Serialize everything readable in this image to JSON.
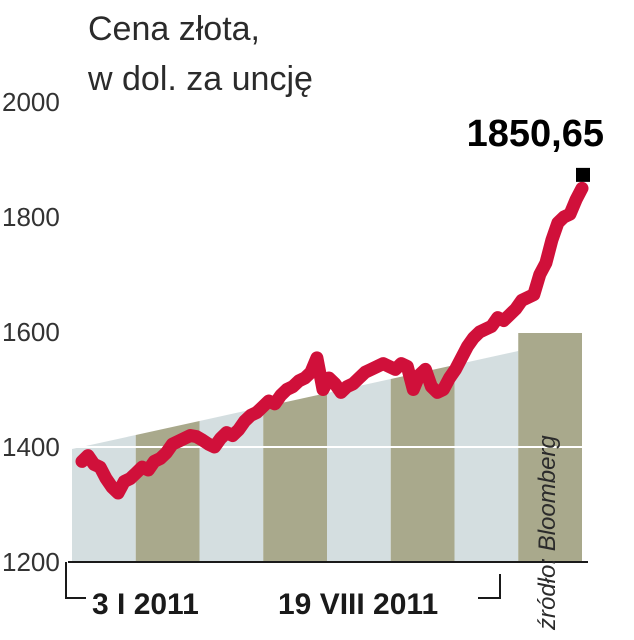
{
  "chart_data": {
    "type": "line",
    "title": "Cena złota,",
    "subtitle": "w dol. za uncję",
    "y_ticks": [
      "2000",
      "1800",
      "1600",
      "1400",
      "1200"
    ],
    "ylim": [
      1200,
      2000
    ],
    "x_tick_labels": [
      "3 I 2011",
      "19 VIII 2011"
    ],
    "last_value_label": "1850,65",
    "source": "źródło: Bloomberg",
    "grid": "horizontal",
    "colors": {
      "line": "#d0103a",
      "marker": "#000000",
      "band_light": "#cdd8db",
      "band_dark": "#9a9a78",
      "grid": "#ffffff",
      "text": "#2b2b2b"
    },
    "series": [
      {
        "values": [
          1375,
          1385,
          1370,
          1365,
          1345,
          1330,
          1320,
          1340,
          1345,
          1355,
          1365,
          1360,
          1375,
          1380,
          1390,
          1405,
          1410,
          1415,
          1420,
          1418,
          1412,
          1405,
          1400,
          1415,
          1425,
          1420,
          1430,
          1445,
          1455,
          1460,
          1470,
          1480,
          1475,
          1490,
          1500,
          1505,
          1515,
          1520,
          1530,
          1555,
          1500,
          1520,
          1510,
          1495,
          1505,
          1510,
          1520,
          1530,
          1535,
          1540,
          1545,
          1540,
          1535,
          1545,
          1540,
          1500,
          1525,
          1535,
          1505,
          1495,
          1500,
          1520,
          1535,
          1555,
          1575,
          1590,
          1600,
          1605,
          1610,
          1625,
          1620,
          1630,
          1640,
          1655,
          1660,
          1665,
          1700,
          1720,
          1760,
          1790,
          1800,
          1805,
          1830,
          1850
        ]
      }
    ],
    "last_value": 1850.65
  }
}
